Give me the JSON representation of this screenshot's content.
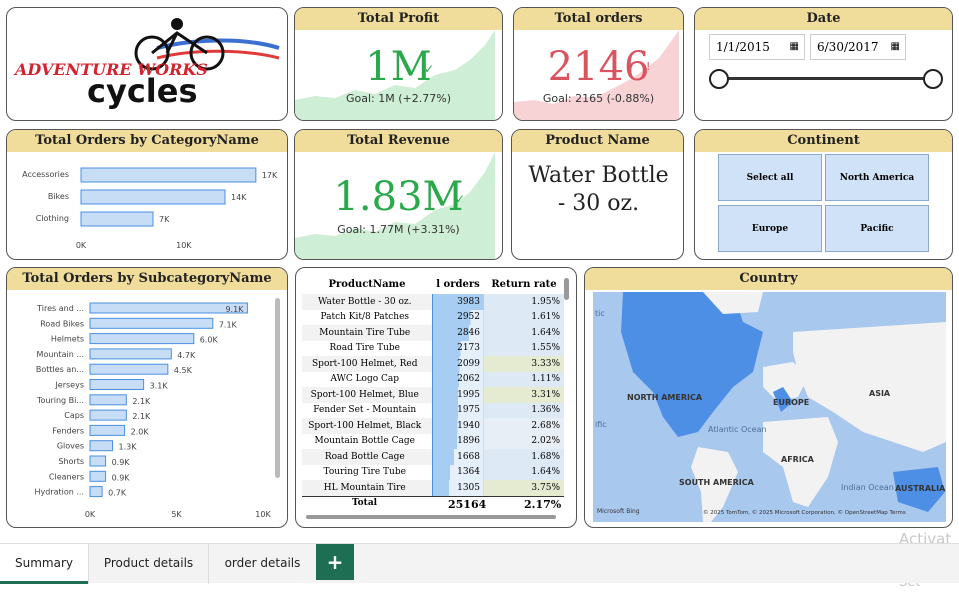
{
  "logo": {
    "line1": "ADVENTURE WORKS",
    "line2": "cycles"
  },
  "total_profit": {
    "title": "Total Profit",
    "value": "1M",
    "goal": "Goal: 1M (+2.77%)",
    "color": "#2aa84a"
  },
  "total_orders": {
    "title": "Total orders",
    "value": "2146",
    "goal": "Goal: 2165 (-0.88%)",
    "color": "#d9545f"
  },
  "date": {
    "title": "Date",
    "start": "1/1/2015",
    "end": "6/30/2017"
  },
  "orders_by_category": {
    "title": "Total Orders by CategoryName",
    "chart_data": {
      "type": "bar",
      "categories": [
        "Accessories",
        "Bikes",
        "Clothing"
      ],
      "values": [
        17000,
        14000,
        7000
      ],
      "labels": [
        "17K",
        "14K",
        "7K"
      ],
      "ticks": [
        "0K",
        "10K"
      ],
      "xlim": [
        0,
        17500
      ]
    }
  },
  "total_revenue": {
    "title": "Total Revenue",
    "value": "1.83M",
    "goal": "Goal: 1.77M (+3.31%)",
    "color": "#2aa84a"
  },
  "product_name": {
    "title": "Product Name",
    "value": "Water Bottle - 30 oz."
  },
  "continent": {
    "title": "Continent",
    "buttons": [
      "Select all",
      "North America",
      "Europe",
      "Pacific"
    ]
  },
  "orders_by_subcategory": {
    "title": "Total Orders by SubcategoryName",
    "chart_data": {
      "type": "bar",
      "categories": [
        "Tires and ...",
        "Road Bikes",
        "Helmets",
        "Mountain ...",
        "Bottles an...",
        "Jerseys",
        "Touring Bi...",
        "Caps",
        "Fenders",
        "Gloves",
        "Shorts",
        "Cleaners",
        "Hydration ..."
      ],
      "values": [
        9100,
        7100,
        6000,
        4700,
        4500,
        3100,
        2100,
        2100,
        2000,
        1300,
        900,
        900,
        700
      ],
      "labels": [
        "9.1K",
        "7.1K",
        "6.0K",
        "4.7K",
        "4.5K",
        "3.1K",
        "2.1K",
        "2.1K",
        "2.0K",
        "1.3K",
        "0.9K",
        "0.9K",
        "0.7K"
      ],
      "ticks": [
        "0K",
        "5K",
        "10K"
      ],
      "xlim": [
        0,
        10000
      ]
    }
  },
  "product_table": {
    "headers": [
      "ProductName",
      "l orders",
      "Return rate"
    ],
    "rows": [
      [
        "Water Bottle - 30 oz.",
        "3983",
        "1.95%"
      ],
      [
        "Patch Kit/8 Patches",
        "2952",
        "1.61%"
      ],
      [
        "Mountain Tire Tube",
        "2846",
        "1.64%"
      ],
      [
        "Road Tire Tube",
        "2173",
        "1.55%"
      ],
      [
        "Sport-100 Helmet, Red",
        "2099",
        "3.33%"
      ],
      [
        "AWC Logo Cap",
        "2062",
        "1.11%"
      ],
      [
        "Sport-100 Helmet, Blue",
        "1995",
        "3.31%"
      ],
      [
        "Fender Set - Mountain",
        "1975",
        "1.36%"
      ],
      [
        "Sport-100 Helmet, Black",
        "1940",
        "2.68%"
      ],
      [
        "Mountain Bottle Cage",
        "1896",
        "2.02%"
      ],
      [
        "Road Bottle Cage",
        "1668",
        "1.68%"
      ],
      [
        "Touring Tire Tube",
        "1364",
        "1.64%"
      ],
      [
        "HL Mountain Tire",
        "1305",
        "3.75%"
      ]
    ],
    "order_values": [
      3983,
      2952,
      2846,
      2173,
      2099,
      2062,
      1995,
      1975,
      1940,
      1896,
      1668,
      1364,
      1305
    ],
    "return_values": [
      1.95,
      1.61,
      1.64,
      1.55,
      3.33,
      1.11,
      3.31,
      1.36,
      2.68,
      2.02,
      1.68,
      1.64,
      3.75
    ],
    "total": [
      "Total",
      "25164",
      "2.17%"
    ]
  },
  "country": {
    "title": "Country",
    "labels": [
      "NORTH AMERICA",
      "EUROPE",
      "ASIA",
      "AFRICA",
      "SOUTH AMERICA",
      "AUSTRALIA",
      "Atlantic Ocean",
      "Indian Ocean",
      "tic",
      "ific"
    ],
    "attribution": "© 2025 TomTom, © 2025 Microsoft Corporation, © OpenStreetMap  Terms",
    "brand": "Microsoft Bing"
  },
  "tabs": [
    "Summary",
    "Product details",
    "order details"
  ],
  "add_tab": "+",
  "watermark": {
    "line1": "Activat",
    "line2": "Go to Set"
  }
}
